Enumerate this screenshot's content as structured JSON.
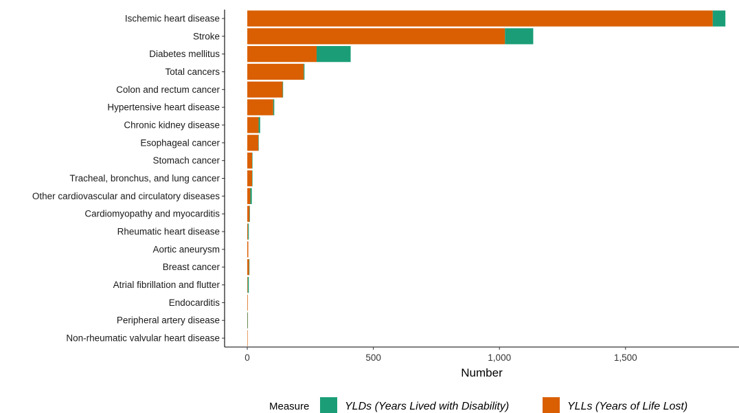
{
  "chart_data": {
    "type": "bar",
    "orientation": "horizontal",
    "stacked": true,
    "categories": [
      "Ischemic heart disease",
      "Stroke",
      "Diabetes mellitus",
      "Total cancers",
      "Colon and rectum cancer",
      "Hypertensive heart disease",
      "Chronic kidney disease",
      "Esophageal cancer",
      "Stomach cancer",
      "Tracheal, bronchus, and lung cancer",
      "Other cardiovascular and circulatory diseases",
      "Cardiomyopathy and myocarditis",
      "Rheumatic heart disease",
      "Aortic aneurysm",
      "Breast cancer",
      "Atrial fibrillation and flutter",
      "Endocarditis",
      "Peripheral artery disease",
      "Non-rheumatic valvular heart disease"
    ],
    "series": [
      {
        "name": "YLLs (Years of Life Lost)",
        "color": "#D95F02",
        "values": [
          1846,
          1022,
          275,
          224,
          140,
          103,
          45,
          44,
          19,
          19,
          12,
          9,
          3,
          4,
          7,
          2,
          2,
          1,
          1
        ]
      },
      {
        "name": "YLDs (Years Lived with Disability)",
        "color": "#1B9E77",
        "values": [
          50,
          112,
          135,
          3,
          2,
          4,
          6,
          1,
          1,
          1,
          6,
          1,
          3,
          0,
          1,
          4,
          0,
          1,
          0
        ]
      }
    ],
    "xlabel": "Number",
    "xlim": [
      -90,
      1950
    ],
    "xticks": [
      0,
      500,
      1000,
      1500
    ],
    "xtick_labels": [
      "0",
      "500",
      "1,000",
      "1,500"
    ],
    "grid": false,
    "legend": {
      "title": "Measure",
      "position": "bottom",
      "entries": [
        {
          "label": "YLDs (Years Lived with Disability)",
          "color": "#1B9E77"
        },
        {
          "label": "YLLs (Years of Life Lost)",
          "color": "#D95F02"
        }
      ]
    }
  }
}
